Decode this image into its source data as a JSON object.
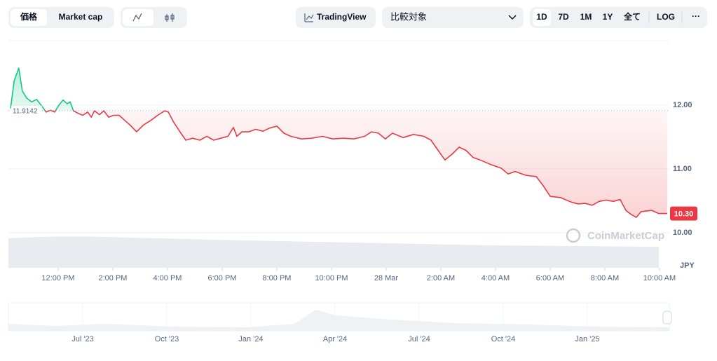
{
  "toolbar": {
    "tabs": [
      "価格",
      "Market cap"
    ],
    "tradingview": "TradingView",
    "compare": "比較対象",
    "ranges": [
      "1D",
      "7D",
      "1M",
      "1Y",
      "全て"
    ],
    "log": "LOG",
    "more": "···"
  },
  "chart_data": {
    "type": "line",
    "x": [
      0.26,
      0.39,
      0.56,
      0.69,
      0.85,
      1.03,
      1.21,
      1.41,
      1.56,
      1.72,
      1.87,
      2.03,
      2.18,
      2.33,
      2.44,
      2.56,
      2.74,
      2.9,
      3.08,
      3.21,
      3.33,
      3.51,
      3.67,
      3.85,
      4.03,
      4.23,
      4.44,
      4.62,
      4.87,
      5.13,
      5.39,
      5.64,
      5.9,
      6.03,
      6.23,
      6.49,
      6.67,
      6.92,
      7.18,
      7.44,
      7.69,
      7.95,
      8.21,
      8.41,
      8.54,
      8.72,
      8.97,
      9.23,
      9.49,
      9.74,
      10.0,
      10.26,
      10.51,
      10.9,
      11.28,
      11.67,
      12.05,
      12.44,
      12.82,
      13.21,
      13.46,
      13.72,
      13.97,
      14.23,
      14.62,
      15.0,
      15.38,
      15.64,
      15.9,
      16.15,
      16.41,
      16.67,
      16.92,
      17.18,
      17.44,
      17.82,
      18.21,
      18.46,
      18.72,
      19.1,
      19.49,
      19.74,
      20.0,
      20.38,
      20.77,
      21.03,
      21.28,
      21.54,
      21.79,
      22.05,
      22.31,
      22.56,
      22.77,
      22.95,
      23.15,
      23.33,
      23.72,
      23.97,
      24.28
    ],
    "values": [
      11.95,
      12.38,
      12.58,
      12.22,
      12.11,
      12.05,
      12.09,
      11.98,
      11.89,
      11.92,
      11.89,
      12.0,
      12.08,
      12.02,
      12.05,
      11.91,
      11.87,
      11.84,
      11.89,
      11.81,
      11.91,
      11.85,
      11.91,
      11.81,
      11.84,
      11.84,
      11.76,
      11.69,
      11.58,
      11.69,
      11.76,
      11.84,
      11.91,
      11.89,
      11.73,
      11.56,
      11.45,
      11.48,
      11.45,
      11.51,
      11.45,
      11.48,
      11.51,
      11.65,
      11.51,
      11.58,
      11.58,
      11.62,
      11.59,
      11.64,
      11.67,
      11.56,
      11.51,
      11.47,
      11.48,
      11.51,
      11.47,
      11.48,
      11.47,
      11.51,
      11.58,
      11.56,
      11.47,
      11.56,
      11.49,
      11.54,
      11.51,
      11.45,
      11.29,
      11.14,
      11.23,
      11.34,
      11.29,
      11.18,
      11.14,
      11.07,
      11.01,
      10.92,
      10.96,
      10.9,
      10.88,
      10.74,
      10.57,
      10.55,
      10.48,
      10.45,
      10.46,
      10.43,
      10.49,
      10.51,
      10.49,
      10.52,
      10.35,
      10.29,
      10.24,
      10.33,
      10.35,
      10.3,
      10.3
    ],
    "color_above": "#16c784",
    "color_below": "#ea3943",
    "reference_line": 11.9142,
    "last_value": {
      "value": 10.3,
      "label": "10.30"
    },
    "ylabel": "JPY",
    "xlim": [
      0.18,
      24.36
    ],
    "ylim": [
      9.45,
      13.01
    ],
    "yticks": [
      {
        "value": 10,
        "label": "10.00"
      },
      {
        "value": 11,
        "label": "11.00"
      },
      {
        "value": 12,
        "label": "12.00"
      }
    ],
    "xticks": [
      {
        "value": 2,
        "label": "12:00 PM"
      },
      {
        "value": 4,
        "label": "2:00 PM"
      },
      {
        "value": 6,
        "label": "4:00 PM"
      },
      {
        "value": 8,
        "label": "6:00 PM"
      },
      {
        "value": 10,
        "label": "8:00 PM"
      },
      {
        "value": 12,
        "label": "10:00 PM"
      },
      {
        "value": 14,
        "label": "28 Mar"
      },
      {
        "value": 16,
        "label": "2:00 AM"
      },
      {
        "value": 18,
        "label": "4:00 AM"
      },
      {
        "value": 20,
        "label": "6:00 AM"
      },
      {
        "value": 22,
        "label": "8:00 AM"
      },
      {
        "value": 24,
        "label": "10:00 AM"
      }
    ],
    "grid": true,
    "watermark": "CoinMarketCap"
  },
  "navigator": {
    "labels": [
      "Jul '23",
      "Oct '23",
      "Jan '24",
      "Apr '24",
      "Jul '24",
      "Oct '24",
      "Jan '25"
    ]
  }
}
